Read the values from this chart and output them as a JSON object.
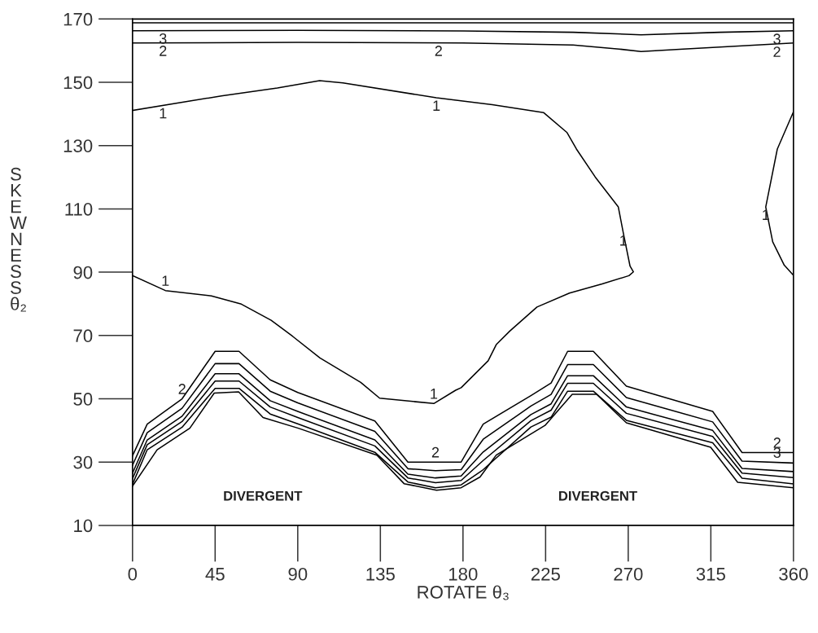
{
  "chart_data": {
    "type": "line",
    "xlabel": "ROTATE θ₃",
    "ylabel": "SKEWNESS θ₂",
    "xlim": [
      0,
      360
    ],
    "ylim": [
      10,
      170
    ],
    "xticks": [
      0,
      45,
      90,
      135,
      180,
      225,
      270,
      315,
      360
    ],
    "yticks": [
      10,
      30,
      50,
      70,
      90,
      110,
      130,
      150,
      170
    ],
    "grid": false,
    "marker": "none",
    "line_style": "solid",
    "series": [
      {
        "color": "#000000",
        "x": [
          0,
          360
        ],
        "values": [
          168.8,
          168.8
        ]
      },
      {
        "color": "#000000",
        "x": [
          0,
          90,
          180,
          240,
          277,
          320,
          360
        ],
        "values": [
          166.3,
          166.4,
          166.2,
          165.8,
          165.0,
          165.8,
          166.3
        ]
      },
      {
        "color": "#000000",
        "x": [
          0,
          90,
          180,
          240,
          265,
          277,
          300,
          360
        ],
        "values": [
          162.4,
          162.6,
          162.4,
          161.8,
          160.5,
          159.7,
          160.5,
          162.4
        ]
      },
      {
        "color": "#000000",
        "x": [
          0,
          48.4,
          78.9,
          101.9,
          114.6,
          165.5,
          196,
          224,
          236.7,
          241.8,
          252,
          264.6,
          267.3,
          271,
          272.8,
          270.4,
          255.8,
          238,
          220.3,
          205.5,
          198.1,
          193.7,
          179,
          176,
          164.1,
          134.6,
          124.3,
          102.1,
          87.3,
          75.5,
          59.3,
          43,
          17.9,
          0
        ],
        "values": [
          141.1,
          145.7,
          148.2,
          150.5,
          149.8,
          145.1,
          142.9,
          140.4,
          134.1,
          128.9,
          120.1,
          110.6,
          102.5,
          91.9,
          90.1,
          88.9,
          86.3,
          83.4,
          79.0,
          71.4,
          67.1,
          62.0,
          53.5,
          52.7,
          48.5,
          50.2,
          55.2,
          62.9,
          69.7,
          74.8,
          79.9,
          82.5,
          84.2,
          88.9
        ]
      },
      {
        "color": "#000000",
        "x": [
          360,
          351.2,
          344.9,
          348.7,
          355,
          360
        ],
        "values": [
          140.7,
          128.9,
          110.6,
          99.6,
          92.2,
          89.0
        ]
      },
      {
        "color": "#000000",
        "x": [
          0,
          8,
          27,
          45,
          58,
          75,
          90,
          132,
          150,
          165,
          179,
          191,
          217,
          228,
          237,
          251,
          269,
          316,
          332,
          360
        ],
        "values": [
          32,
          42,
          50,
          65,
          65,
          56,
          52,
          43,
          30,
          30,
          30,
          42,
          51,
          55,
          65,
          65,
          54,
          46,
          33,
          33
        ]
      },
      {
        "color": "#000000",
        "x": [
          0,
          8,
          27,
          45,
          58,
          75,
          90,
          132,
          150,
          165,
          179,
          191,
          217,
          228,
          237,
          251,
          269,
          316,
          332,
          360
        ],
        "values": [
          29,
          39.3,
          47,
          61.1,
          61.1,
          52.4,
          48.7,
          39.7,
          27.9,
          27.3,
          27.6,
          37.2,
          47.7,
          51.4,
          60.8,
          60.8,
          50.4,
          42.7,
          30.3,
          29.7
        ]
      },
      {
        "color": "#000000",
        "x": [
          0,
          8,
          27,
          45,
          58,
          75,
          90,
          132,
          150,
          165,
          179,
          191,
          217,
          228,
          237,
          251,
          269,
          316,
          332,
          360
        ],
        "values": [
          26.5,
          37,
          44.5,
          57.9,
          57.9,
          49.4,
          46,
          37,
          26.2,
          25,
          25.6,
          33.2,
          45,
          48.4,
          57.3,
          57.3,
          47.4,
          40,
          28,
          27
        ]
      },
      {
        "color": "#000000",
        "x": [
          0,
          8,
          27,
          45,
          58,
          75,
          90,
          132,
          150,
          165,
          179,
          191,
          217,
          228,
          237,
          251,
          269,
          316,
          332,
          360
        ],
        "values": [
          24.8,
          35.5,
          42.8,
          55.6,
          55.6,
          47.4,
          44.1,
          35.1,
          25,
          23.5,
          24.2,
          30.5,
          43.1,
          46.4,
          54.9,
          54.9,
          45.4,
          38.1,
          26.5,
          25.1
        ]
      },
      {
        "color": "#000000",
        "x": [
          0,
          8,
          27,
          45,
          58,
          75,
          90,
          132,
          150,
          165,
          179,
          191,
          217,
          228,
          237,
          251,
          269,
          316,
          332,
          360
        ],
        "values": [
          23,
          33.9,
          41,
          53.3,
          53.3,
          45.2,
          42.1,
          33.1,
          23.7,
          21.9,
          22.8,
          27.6,
          41.1,
          44.2,
          52.4,
          52.4,
          43.2,
          36.1,
          24.9,
          23.1
        ]
      },
      {
        "color": "#000000",
        "x": [
          0,
          13.4,
          31.2,
          44.5,
          57.8,
          71.1,
          90.3,
          133.1,
          147.9,
          165.6,
          179,
          189.3,
          198.1,
          224.7,
          239.5,
          252.8,
          269,
          314.9,
          329.6,
          360
        ],
        "values": [
          22.4,
          33.9,
          40.7,
          51.8,
          52.2,
          44.1,
          40.7,
          32.2,
          23.2,
          21.1,
          21.9,
          25.3,
          32.2,
          41.6,
          51.4,
          51.4,
          42.4,
          34.7,
          23.6,
          21.9
        ]
      }
    ],
    "annotations": [
      {
        "text": "3",
        "x": 16.6,
        "y": 166.3
      },
      {
        "text": "3",
        "x": 351,
        "y": 166.2
      },
      {
        "text": "2",
        "x": 16.6,
        "y": 162.4
      },
      {
        "text": "2",
        "x": 166.7,
        "y": 162.4
      },
      {
        "text": "2",
        "x": 351,
        "y": 162.1
      },
      {
        "text": "1",
        "x": 16.6,
        "y": 142.7
      },
      {
        "text": "1",
        "x": 165.5,
        "y": 145.1
      },
      {
        "text": "1",
        "x": 344.9,
        "y": 110.6
      },
      {
        "text": "1",
        "x": 267.3,
        "y": 102.5
      },
      {
        "text": "1",
        "x": 17.9,
        "y": 84.2
      },
      {
        "text": "1",
        "x": 164.1,
        "y": 48.5
      },
      {
        "text": "2",
        "x": 27,
        "y": 50
      },
      {
        "text": "2",
        "x": 165,
        "y": 30
      },
      {
        "text": "2",
        "x": 351.1,
        "y": 33
      },
      {
        "text": "3",
        "x": 351.1,
        "y": 29.9
      },
      "DIVERGENT",
      "DIVERGENT"
    ]
  }
}
